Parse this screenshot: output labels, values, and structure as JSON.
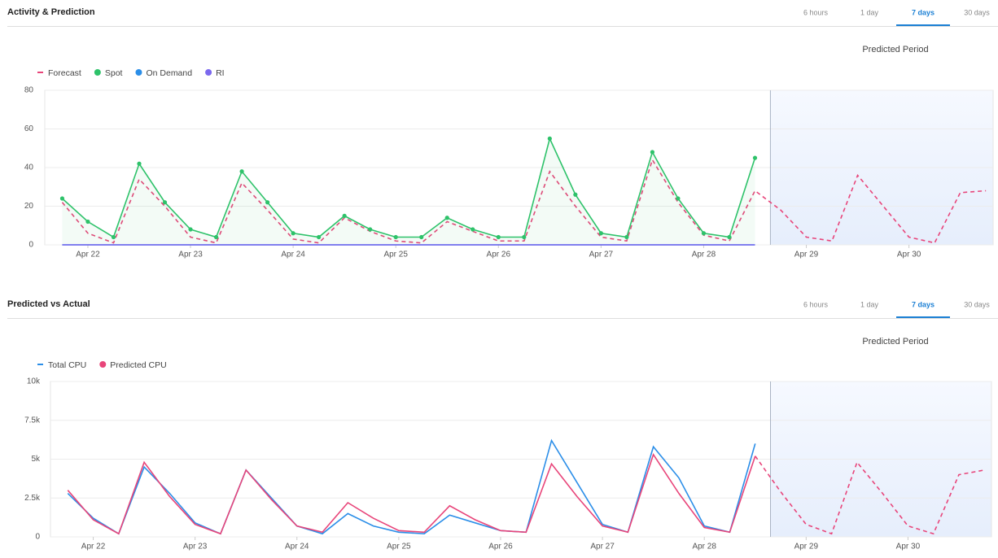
{
  "panels": [
    {
      "title": "Activity & Prediction",
      "tabs": [
        "6 hours",
        "1 day",
        "7 days",
        "30 days"
      ],
      "active_tab": 2,
      "predicted_label": "Predicted Period"
    },
    {
      "title": "Predicted vs Actual",
      "tabs": [
        "6 hours",
        "1 day",
        "7 days",
        "30 days"
      ],
      "active_tab": 2,
      "predicted_label": "Predicted Period"
    }
  ],
  "chart_data": [
    {
      "type": "line",
      "xlim": [
        21.58,
        30.82
      ],
      "ylim": [
        0,
        80
      ],
      "yticks": [
        0,
        20,
        40,
        60,
        80
      ],
      "grid": true,
      "predicted_start": 28.65,
      "xticks": [
        {
          "value": 22,
          "label": "Apr 22"
        },
        {
          "value": 23,
          "label": "Apr 23"
        },
        {
          "value": 24,
          "label": "Apr 24"
        },
        {
          "value": 25,
          "label": "Apr 25"
        },
        {
          "value": 26,
          "label": "Apr 26"
        },
        {
          "value": 27,
          "label": "Apr 27"
        },
        {
          "value": 28,
          "label": "Apr 28"
        },
        {
          "value": 29,
          "label": "Apr 29"
        },
        {
          "value": 30,
          "label": "Apr 30"
        }
      ],
      "x": [
        21.75,
        22,
        22.25,
        22.5,
        22.75,
        23,
        23.25,
        23.5,
        23.75,
        24,
        24.25,
        24.5,
        24.75,
        25,
        25.25,
        25.5,
        25.75,
        26,
        26.25,
        26.5,
        26.75,
        27,
        27.25,
        27.5,
        27.75,
        28,
        28.25,
        28.5,
        28.75,
        29,
        29.25,
        29.5,
        29.75,
        30,
        30.25,
        30.5,
        30.75
      ],
      "series": [
        {
          "name": "Forecast",
          "color": "#e8457a",
          "style": "dashed",
          "legend_marker": "dash",
          "values": [
            22,
            6,
            1,
            34,
            20,
            4,
            1,
            32,
            18,
            3,
            1,
            14,
            7,
            2,
            1,
            12,
            7,
            2,
            2,
            38,
            20,
            4,
            2,
            44,
            22,
            5,
            2,
            28,
            18,
            4,
            2,
            36,
            20,
            4,
            1,
            27,
            28
          ]
        },
        {
          "name": "Spot",
          "color": "#2ec26a",
          "style": "solid",
          "fill": true,
          "markers": true,
          "legend_marker": "dot",
          "values": [
            24,
            12,
            4,
            42,
            22,
            8,
            4,
            38,
            22,
            6,
            4,
            15,
            8,
            4,
            4,
            14,
            8,
            4,
            4,
            55,
            26,
            6,
            4,
            48,
            24,
            6,
            4,
            45,
            null,
            null,
            null,
            null,
            null,
            null,
            null,
            null,
            null
          ]
        },
        {
          "name": "On Demand",
          "color": "#2b8ee8",
          "style": "solid",
          "legend_marker": "dot",
          "values": [
            0,
            0,
            0,
            0,
            0,
            0,
            0,
            0,
            0,
            0,
            0,
            0,
            0,
            0,
            0,
            0,
            0,
            0,
            0,
            0,
            0,
            0,
            0,
            0,
            0,
            0,
            0,
            0,
            null,
            null,
            null,
            null,
            null,
            null,
            null,
            null,
            null
          ]
        },
        {
          "name": "RI",
          "color": "#7b68ee",
          "style": "solid",
          "legend_marker": "dot",
          "values": [
            0,
            0,
            0,
            0,
            0,
            0,
            0,
            0,
            0,
            0,
            0,
            0,
            0,
            0,
            0,
            0,
            0,
            0,
            0,
            0,
            0,
            0,
            0,
            0,
            0,
            0,
            0,
            0,
            null,
            null,
            null,
            null,
            null,
            null,
            null,
            null,
            null
          ]
        }
      ]
    },
    {
      "type": "line",
      "xlim": [
        21.58,
        30.82
      ],
      "ylim": [
        0,
        10000
      ],
      "grid": true,
      "predicted_start": 28.65,
      "yticks": [
        0,
        {
          "value": 2500,
          "label": "2.5k"
        },
        {
          "value": 5000,
          "label": "5k"
        },
        {
          "value": 7500,
          "label": "7.5k"
        },
        {
          "value": 10000,
          "label": "10k"
        }
      ],
      "xticks": [
        {
          "value": 22,
          "label": "Apr 22"
        },
        {
          "value": 23,
          "label": "Apr 23"
        },
        {
          "value": 24,
          "label": "Apr 24"
        },
        {
          "value": 25,
          "label": "Apr 25"
        },
        {
          "value": 26,
          "label": "Apr 26"
        },
        {
          "value": 27,
          "label": "Apr 27"
        },
        {
          "value": 28,
          "label": "Apr 28"
        },
        {
          "value": 29,
          "label": "Apr 29"
        },
        {
          "value": 30,
          "label": "Apr 30"
        }
      ],
      "x": [
        21.75,
        22,
        22.25,
        22.5,
        22.75,
        23,
        23.25,
        23.5,
        23.75,
        24,
        24.25,
        24.5,
        24.75,
        25,
        25.25,
        25.5,
        25.75,
        26,
        26.25,
        26.5,
        26.75,
        27,
        27.25,
        27.5,
        27.75,
        28,
        28.25,
        28.5,
        28.75,
        29,
        29.25,
        29.5,
        29.75,
        30,
        30.25,
        30.5,
        30.75
      ],
      "series": [
        {
          "name": "Total CPU",
          "color": "#2b8ee8",
          "style": "solid",
          "legend_marker": "dash",
          "values": [
            2800,
            1200,
            200,
            4500,
            2800,
            900,
            200,
            4300,
            2500,
            700,
            200,
            1500,
            700,
            300,
            200,
            1400,
            900,
            400,
            300,
            6200,
            3500,
            800,
            300,
            5800,
            3800,
            700,
            300,
            6000,
            null,
            null,
            null,
            null,
            null,
            null,
            null,
            null,
            null
          ]
        },
        {
          "name": "Predicted CPU",
          "color": "#e8457a",
          "style": "solid-then-dashed",
          "legend_marker": "dot",
          "values": [
            3000,
            1100,
            200,
            4800,
            2600,
            800,
            200,
            4300,
            2400,
            700,
            300,
            2200,
            1200,
            400,
            300,
            2000,
            1100,
            400,
            300,
            4700,
            2600,
            700,
            300,
            5300,
            2800,
            600,
            300,
            5200,
            2900,
            800,
            200,
            4800,
            2800,
            700,
            200,
            4000,
            4300
          ]
        }
      ]
    }
  ]
}
